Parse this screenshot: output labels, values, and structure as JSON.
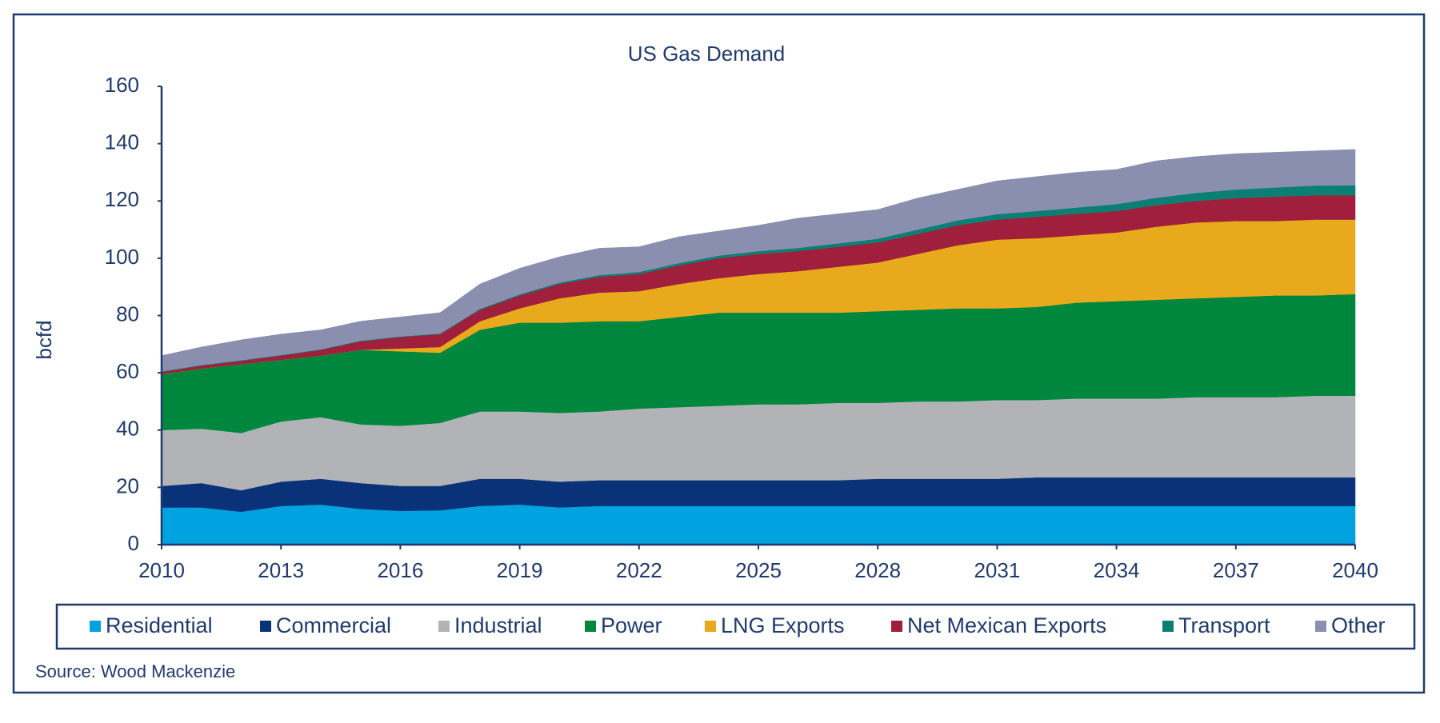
{
  "chart_data": {
    "type": "stacked-area",
    "title": "US Gas Demand",
    "y_label": "bcfd",
    "source": "Source: Wood Mackenzie",
    "x": [
      2010,
      2011,
      2012,
      2013,
      2014,
      2015,
      2016,
      2017,
      2018,
      2019,
      2020,
      2021,
      2022,
      2023,
      2024,
      2025,
      2026,
      2027,
      2028,
      2029,
      2030,
      2031,
      2032,
      2033,
      2034,
      2035,
      2036,
      2037,
      2038,
      2039,
      2040
    ],
    "xlim": [
      2010,
      2040
    ],
    "xticks": [
      2010,
      2013,
      2016,
      2019,
      2022,
      2025,
      2028,
      2031,
      2034,
      2037,
      2040
    ],
    "ylim": [
      0,
      160
    ],
    "yticks": [
      0,
      20,
      40,
      60,
      80,
      100,
      120,
      140,
      160
    ],
    "grid": false,
    "legend": "bottom",
    "series": [
      {
        "name": "Residential",
        "color": "#00a3e0",
        "values": [
          13,
          13,
          11.5,
          13.5,
          14,
          12.5,
          11.8,
          12,
          13.5,
          14,
          13,
          13.5,
          13.5,
          13.5,
          13.5,
          13.5,
          13.5,
          13.5,
          13.5,
          13.5,
          13.5,
          13.5,
          13.5,
          13.5,
          13.5,
          13.5,
          13.5,
          13.5,
          13.5,
          13.5,
          13.5
        ]
      },
      {
        "name": "Commercial",
        "color": "#0a3278",
        "values": [
          7.5,
          8.5,
          7.5,
          8.5,
          9,
          9,
          8.7,
          8.5,
          9.5,
          9,
          9,
          9,
          9,
          9,
          9,
          9,
          9,
          9,
          9.5,
          9.5,
          9.5,
          9.5,
          10,
          10,
          10,
          10,
          10,
          10,
          10,
          10,
          10
        ]
      },
      {
        "name": "Industrial",
        "color": "#b1b3b6",
        "values": [
          19.5,
          19,
          20,
          21,
          21.5,
          20.5,
          21,
          22,
          23.5,
          23.5,
          24,
          24,
          25,
          25.5,
          26,
          26.5,
          26.5,
          27,
          26.5,
          27,
          27,
          27.5,
          27,
          27.5,
          27.5,
          27.5,
          28,
          28,
          28,
          28.5,
          28.5
        ]
      },
      {
        "name": "Power",
        "color": "#00873e",
        "values": [
          19.5,
          21,
          24,
          21.5,
          21.5,
          26,
          26,
          24.5,
          28.5,
          31,
          31.5,
          31.5,
          30.5,
          31.5,
          32.5,
          32,
          32,
          31.5,
          32,
          32,
          32.5,
          32,
          32.5,
          33.5,
          34,
          34.5,
          34.5,
          35,
          35.5,
          35,
          35.5
        ]
      },
      {
        "name": "LNG Exports",
        "color": "#e9a91c",
        "values": [
          0,
          0,
          0,
          0,
          0,
          0,
          1,
          2,
          3,
          5,
          8.5,
          10,
          10.5,
          11.5,
          12,
          13.5,
          14.5,
          16,
          17,
          19.5,
          22,
          24,
          24,
          23.5,
          24,
          25.5,
          26.5,
          26.5,
          26,
          26.5,
          26
        ]
      },
      {
        "name": "Net Mexican Exports",
        "color": "#a01f3c",
        "values": [
          0.8,
          1,
          1.2,
          1.5,
          2,
          3,
          4,
          4.5,
          4,
          4.5,
          5,
          5.5,
          6,
          6.5,
          7,
          7,
          7,
          7,
          7,
          7,
          7,
          7,
          7.5,
          7.5,
          7.5,
          7.5,
          7.5,
          8,
          8.5,
          8.5,
          8.5
        ]
      },
      {
        "name": "Transport",
        "color": "#0c7f74",
        "values": [
          0.2,
          0.2,
          0.2,
          0.2,
          0.2,
          0.2,
          0.2,
          0.2,
          0.3,
          0.4,
          0.5,
          0.6,
          0.7,
          0.8,
          0.9,
          1,
          1.1,
          1.2,
          1.3,
          1.5,
          1.7,
          1.9,
          2,
          2.2,
          2.4,
          2.6,
          2.8,
          3,
          3.2,
          3.4,
          3.5
        ]
      },
      {
        "name": "Other",
        "color": "#8a8faf",
        "values": [
          5.5,
          6.3,
          7.1,
          7.3,
          6.8,
          6.8,
          6.8,
          7.3,
          8.7,
          9.1,
          9,
          9.4,
          8.8,
          9.2,
          8.6,
          9,
          10.4,
          10.3,
          10.2,
          11,
          10.8,
          11.6,
          12,
          12.3,
          12.1,
          12.9,
          12.7,
          12.5,
          12.3,
          12.1,
          12.5
        ]
      }
    ]
  }
}
